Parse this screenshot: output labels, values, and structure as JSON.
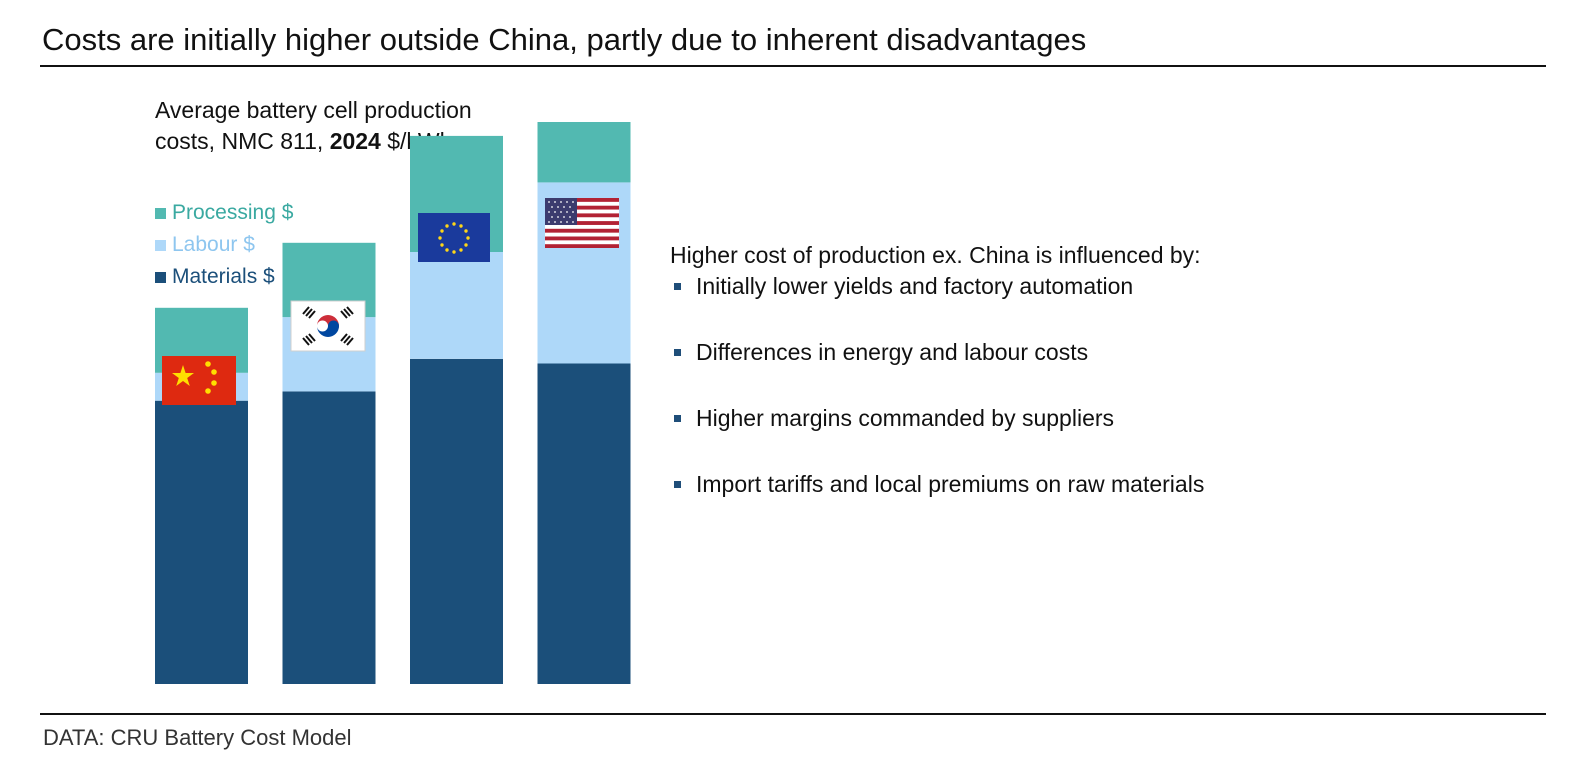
{
  "title": "Costs are initially higher outside China, partly due to inherent disadvantages",
  "subtitle": {
    "line1": "Average battery cell production",
    "line2_prefix": "costs, NMC 811, ",
    "line2_year": "2024",
    "line2_suffix": " $/kWh"
  },
  "source": "DATA: CRU Battery Cost Model",
  "colors": {
    "materials": "#1b4f7a",
    "labour": "#aed8f9",
    "processing": "#52b9b1",
    "bullet": "#1f4e79"
  },
  "legend": [
    {
      "label": "Processing $",
      "color": "#52b9b1",
      "text_color": "#3aa9a1"
    },
    {
      "label": "Labour $",
      "color": "#aed8f9",
      "text_color": "#8ec6ef"
    },
    {
      "label": "Materials $",
      "color": "#1b4f7a",
      "text_color": "#1b4f7a"
    }
  ],
  "chart_data": {
    "type": "bar",
    "stacked": true,
    "title": "Average battery cell production costs, NMC 811, 2024 $/kWh",
    "categories": [
      "China",
      "South Korea",
      "Europe",
      "United States"
    ],
    "series": [
      {
        "name": "Materials $",
        "values": [
          61,
          63,
          70,
          69
        ]
      },
      {
        "name": "Labour $",
        "values": [
          6,
          16,
          23,
          39
        ]
      },
      {
        "name": "Processing $",
        "values": [
          14,
          16,
          25,
          13
        ]
      }
    ],
    "ylim": [
      0,
      121
    ],
    "axis_visible": false,
    "flags": [
      "china-flag-icon",
      "south-korea-flag-icon",
      "eu-flag-icon",
      "us-flag-icon"
    ]
  },
  "panel": {
    "heading": "Higher cost of production ex. China is influenced by:",
    "bullets": [
      "Initially lower yields and factory automation",
      "Differences in energy and labour costs",
      "Higher margins commanded by suppliers",
      "Import tariffs and local premiums on raw materials"
    ]
  }
}
